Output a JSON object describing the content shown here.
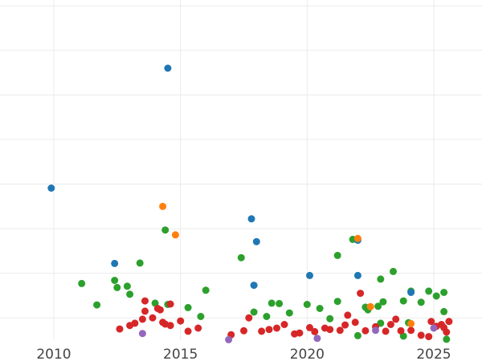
{
  "chart_data": {
    "type": "scatter",
    "title": "",
    "xlabel": "",
    "ylabel": "",
    "grid": true,
    "legend": "none",
    "xlim": [
      2010.0,
      2026.0
    ],
    "ylim": [
      0,
      7.5
    ],
    "x_ticks": [
      2010,
      2015,
      2020,
      2025
    ],
    "x_tick_labels": [
      "2010",
      "2015",
      "2020",
      "2025"
    ],
    "y_grid": [
      0.5,
      1.5,
      2.5,
      3.5,
      4.5,
      5.5,
      6.5,
      7.5
    ],
    "series": [
      {
        "color": "#2ca02c",
        "points": [
          [
            2011.1,
            1.27
          ],
          [
            2011.7,
            0.79
          ],
          [
            2012.4,
            1.34
          ],
          [
            2012.5,
            1.18
          ],
          [
            2012.9,
            1.21
          ],
          [
            2013.0,
            1.03
          ],
          [
            2013.4,
            1.73
          ],
          [
            2014.0,
            0.83
          ],
          [
            2014.4,
            2.47
          ],
          [
            2014.5,
            0.8
          ],
          [
            2015.3,
            0.73
          ],
          [
            2015.8,
            0.53
          ],
          [
            2016.0,
            1.12
          ],
          [
            2017.4,
            1.85
          ],
          [
            2017.9,
            0.63
          ],
          [
            2018.4,
            0.53
          ],
          [
            2018.6,
            0.83
          ],
          [
            2018.9,
            0.82
          ],
          [
            2019.3,
            0.61
          ],
          [
            2020.0,
            0.8
          ],
          [
            2020.5,
            0.71
          ],
          [
            2020.9,
            0.48
          ],
          [
            2021.2,
            1.9
          ],
          [
            2021.2,
            0.87
          ],
          [
            2021.8,
            2.26
          ],
          [
            2022.3,
            0.74
          ],
          [
            2022.8,
            0.76
          ],
          [
            2022.9,
            1.37
          ],
          [
            2023.0,
            0.86
          ],
          [
            2023.4,
            1.54
          ],
          [
            2023.8,
            0.88
          ],
          [
            2024.1,
            1.1
          ],
          [
            2024.5,
            0.85
          ],
          [
            2024.8,
            1.1
          ],
          [
            2025.1,
            0.99
          ],
          [
            2025.4,
            0.64
          ],
          [
            2025.4,
            1.07
          ],
          [
            2025.5,
            0.02
          ],
          [
            2022.0,
            0.1
          ],
          [
            2023.8,
            0.09
          ],
          [
            2024.0,
            0.39
          ],
          [
            2022.4,
            0.68
          ],
          [
            2022.9,
            0.38
          ]
        ]
      },
      {
        "color": "#d62728",
        "points": [
          [
            2012.6,
            0.25
          ],
          [
            2013.0,
            0.33
          ],
          [
            2013.2,
            0.38
          ],
          [
            2013.5,
            0.47
          ],
          [
            2013.6,
            0.65
          ],
          [
            2013.6,
            0.88
          ],
          [
            2013.9,
            0.5
          ],
          [
            2014.1,
            0.71
          ],
          [
            2014.2,
            0.68
          ],
          [
            2014.3,
            0.4
          ],
          [
            2014.4,
            0.36
          ],
          [
            2014.6,
            0.33
          ],
          [
            2014.6,
            0.81
          ],
          [
            2015.0,
            0.43
          ],
          [
            2015.3,
            0.2
          ],
          [
            2015.7,
            0.27
          ],
          [
            2017.0,
            0.12
          ],
          [
            2017.5,
            0.21
          ],
          [
            2017.7,
            0.5
          ],
          [
            2018.2,
            0.2
          ],
          [
            2018.5,
            0.24
          ],
          [
            2018.8,
            0.27
          ],
          [
            2019.1,
            0.35
          ],
          [
            2019.5,
            0.14
          ],
          [
            2019.7,
            0.16
          ],
          [
            2020.1,
            0.28
          ],
          [
            2020.3,
            0.19
          ],
          [
            2020.7,
            0.27
          ],
          [
            2020.9,
            0.24
          ],
          [
            2021.3,
            0.22
          ],
          [
            2021.5,
            0.34
          ],
          [
            2021.6,
            0.56
          ],
          [
            2021.9,
            0.4
          ],
          [
            2022.1,
            1.05
          ],
          [
            2022.3,
            0.21
          ],
          [
            2022.7,
            0.3
          ],
          [
            2023.1,
            0.2
          ],
          [
            2023.3,
            0.35
          ],
          [
            2023.5,
            0.47
          ],
          [
            2023.7,
            0.21
          ],
          [
            2024.1,
            0.22
          ],
          [
            2024.5,
            0.11
          ],
          [
            2024.8,
            0.08
          ],
          [
            2024.9,
            0.42
          ],
          [
            2025.1,
            0.31
          ],
          [
            2025.3,
            0.35
          ],
          [
            2025.5,
            0.18
          ],
          [
            2025.6,
            0.42
          ],
          [
            2025.4,
            0.28
          ]
        ]
      },
      {
        "color": "#1f77b4",
        "points": [
          [
            2009.9,
            3.41
          ],
          [
            2012.4,
            1.72
          ],
          [
            2014.5,
            6.1
          ],
          [
            2017.8,
            2.72
          ],
          [
            2017.9,
            1.23
          ],
          [
            2018.0,
            2.21
          ],
          [
            2020.1,
            1.45
          ],
          [
            2022.0,
            1.45
          ],
          [
            2022.0,
            2.24
          ],
          [
            2024.1,
            1.07
          ]
        ]
      },
      {
        "color": "#ff7f0e",
        "points": [
          [
            2014.3,
            3.0
          ],
          [
            2014.8,
            2.36
          ],
          [
            2022.0,
            2.28
          ],
          [
            2022.5,
            0.75
          ],
          [
            2024.1,
            0.37
          ]
        ]
      },
      {
        "color": "#9467bd",
        "points": [
          [
            2013.5,
            0.15
          ],
          [
            2016.9,
            0.01
          ],
          [
            2020.4,
            0.04
          ],
          [
            2022.7,
            0.22
          ],
          [
            2025.0,
            0.27
          ]
        ]
      }
    ]
  }
}
